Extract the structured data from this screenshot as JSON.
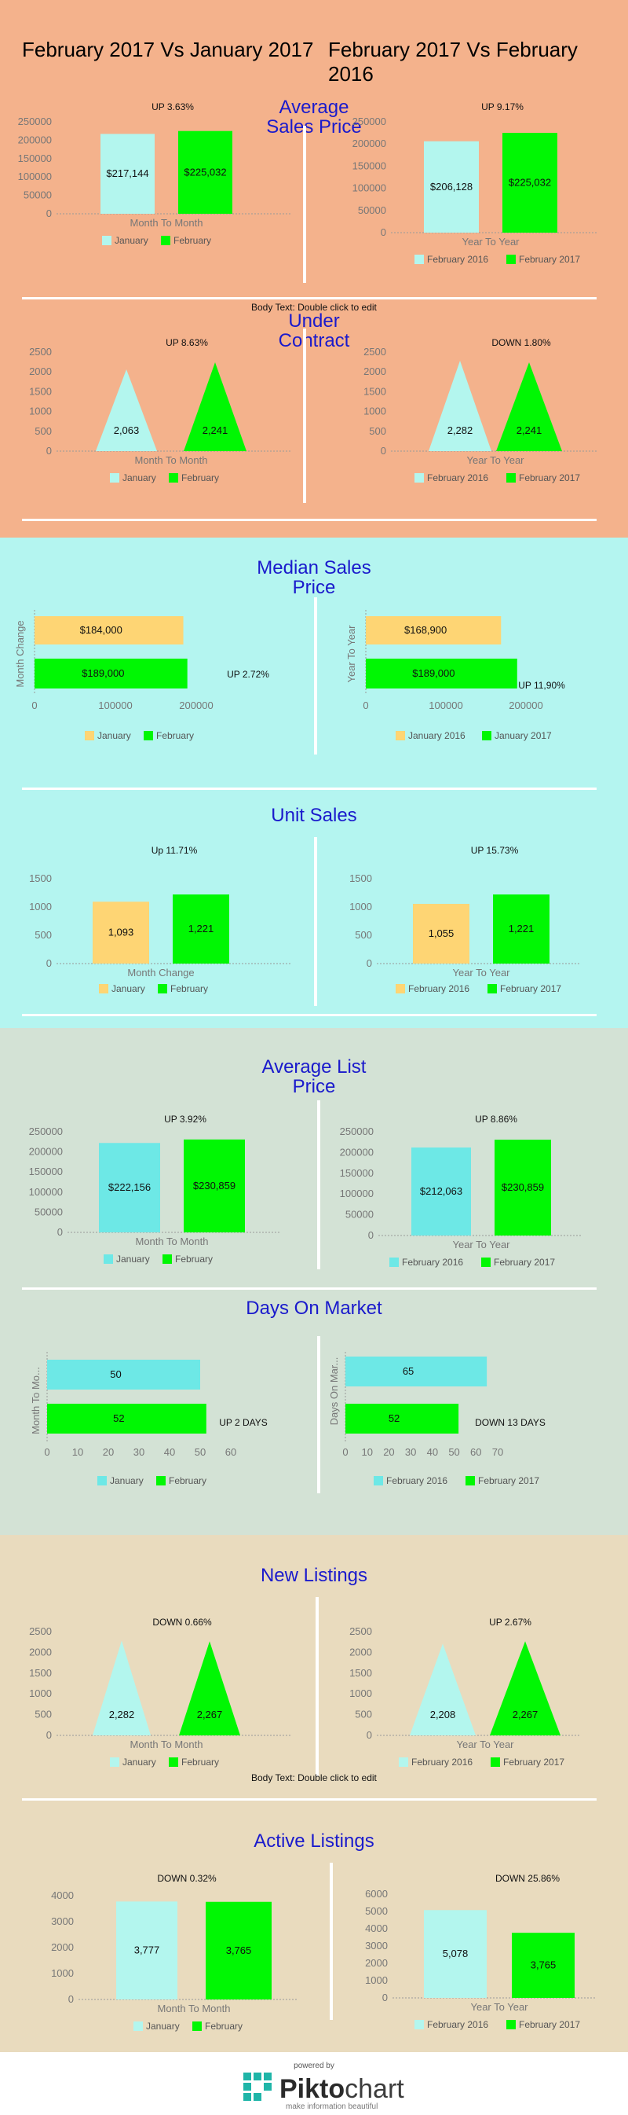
{
  "header": {
    "left_title": "February 2017 Vs January 2017",
    "right_title": "February 2017 Vs February 2016"
  },
  "colors": {
    "band1": "#f4b28c",
    "band2": "#b4f5f0",
    "band3": "#d3e2d5",
    "band4": "#e9dbbe",
    "light_blue": "#b3f6ee",
    "cyan": "#6de8e6",
    "yellow": "#fed574",
    "green": "#00f703",
    "title_blue": "#1a1acc"
  },
  "note_text": "Body Text: Double click to edit",
  "sections": {
    "avg_sales": {
      "title_line1": "Average",
      "title_line2": "Sales Price"
    },
    "under_contract": {
      "title_line1": "Under",
      "title_line2": "Contract"
    },
    "median": {
      "title_line1": "Median Sales",
      "title_line2": "Price"
    },
    "unit_sales": {
      "title_line1": "Unit Sales"
    },
    "avg_list": {
      "title_line1": "Average List",
      "title_line2": "Price"
    },
    "dom": {
      "title_line1": "Days On Market"
    },
    "new_listings": {
      "title_line1": "New Listings"
    },
    "active": {
      "title_line1": "Active Listings"
    }
  },
  "footer": {
    "powered_by": "powered by",
    "brand_a": "Pikto",
    "brand_b": "chart",
    "tagline": "make information beautiful"
  },
  "chart_data": [
    {
      "id": "c1",
      "type": "bar",
      "ylim": [
        0,
        250000
      ],
      "yticks": [
        0,
        50000,
        100000,
        150000,
        200000,
        250000
      ],
      "xlabel": "Month To Month",
      "series": [
        {
          "name": "January",
          "value": 217144,
          "label": "$217,144",
          "color": "#b3f6ee"
        },
        {
          "name": "February",
          "value": 225032,
          "label": "$225,032",
          "color": "#00f703"
        }
      ],
      "annotation": "UP 3.63%"
    },
    {
      "id": "c2",
      "type": "bar",
      "ylim": [
        0,
        250000
      ],
      "yticks": [
        0,
        50000,
        100000,
        150000,
        200000,
        250000
      ],
      "xlabel": "Year To Year",
      "series": [
        {
          "name": "February 2016",
          "value": 206128,
          "label": "$206,128",
          "color": "#b3f6ee"
        },
        {
          "name": "February 2017",
          "value": 225032,
          "label": "$225,032",
          "color": "#00f703"
        }
      ],
      "annotation": "UP 9.17%"
    },
    {
      "id": "c3",
      "type": "triangle",
      "ylim": [
        0,
        2500
      ],
      "yticks": [
        0,
        500,
        1000,
        1500,
        2000,
        2500
      ],
      "xlabel": "Month To Month",
      "series": [
        {
          "name": "January",
          "value": 2063,
          "label": "2,063",
          "color": "#b3f6ee"
        },
        {
          "name": "February",
          "value": 2241,
          "label": "2,241",
          "color": "#00f703"
        }
      ],
      "annotation": "UP 8.63%"
    },
    {
      "id": "c4",
      "type": "triangle",
      "ylim": [
        0,
        2500
      ],
      "yticks": [
        0,
        500,
        1000,
        1500,
        2000,
        2500
      ],
      "xlabel": "Year To Year",
      "series": [
        {
          "name": "February 2016",
          "value": 2282,
          "label": "2,282",
          "color": "#b3f6ee"
        },
        {
          "name": "February 2017",
          "value": 2241,
          "label": "2,241",
          "color": "#00f703"
        }
      ],
      "annotation": "DOWN 1.80%"
    },
    {
      "id": "c5",
      "type": "hbar",
      "xlim": [
        0,
        200000
      ],
      "xticks": [
        0,
        100000,
        200000
      ],
      "ylabel": "Month Change",
      "series": [
        {
          "name": "January",
          "value": 184000,
          "label": "$184,000",
          "color": "#fed574"
        },
        {
          "name": "February",
          "value": 189000,
          "label": "$189,000",
          "color": "#00f703"
        }
      ],
      "annotation": "UP  2.72%"
    },
    {
      "id": "c6",
      "type": "hbar",
      "xlim": [
        0,
        200000
      ],
      "xticks": [
        0,
        100000,
        200000
      ],
      "ylabel": "Year To Year",
      "series": [
        {
          "name": "January 2016",
          "value": 168900,
          "label": "$168,900",
          "color": "#fed574"
        },
        {
          "name": "January 2017",
          "value": 189000,
          "label": "$189,000",
          "color": "#00f703"
        }
      ],
      "annotation": "UP 11,90%"
    },
    {
      "id": "c7",
      "type": "bar",
      "ylim": [
        0,
        1500
      ],
      "yticks": [
        0,
        500,
        1000,
        1500
      ],
      "xlabel": "Month Change",
      "series": [
        {
          "name": "January",
          "value": 1093,
          "label": "1,093",
          "color": "#fed574"
        },
        {
          "name": "February",
          "value": 1221,
          "label": "1,221",
          "color": "#00f703"
        }
      ],
      "annotation": "Up 11.71%"
    },
    {
      "id": "c8",
      "type": "bar",
      "ylim": [
        0,
        1500
      ],
      "yticks": [
        0,
        500,
        1000,
        1500
      ],
      "xlabel": "Year To Year",
      "series": [
        {
          "name": "February 2016",
          "value": 1055,
          "label": "1,055",
          "color": "#fed574"
        },
        {
          "name": "February 2017",
          "value": 1221,
          "label": "1,221",
          "color": "#00f703"
        }
      ],
      "annotation": "UP 15.73%"
    },
    {
      "id": "c9",
      "type": "bar",
      "ylim": [
        0,
        250000
      ],
      "yticks": [
        0,
        50000,
        100000,
        150000,
        200000,
        250000
      ],
      "xlabel": "Month To Month",
      "series": [
        {
          "name": "January",
          "value": 222156,
          "label": "$222,156",
          "color": "#6de8e6"
        },
        {
          "name": "February",
          "value": 230859,
          "label": "$230,859",
          "color": "#00f703"
        }
      ],
      "annotation": "UP 3.92%"
    },
    {
      "id": "c10",
      "type": "bar",
      "ylim": [
        0,
        250000
      ],
      "yticks": [
        0,
        50000,
        100000,
        150000,
        200000,
        250000
      ],
      "xlabel": "Year To Year",
      "series": [
        {
          "name": "February 2016",
          "value": 212063,
          "label": "$212,063",
          "color": "#6de8e6"
        },
        {
          "name": "February 2017",
          "value": 230859,
          "label": "$230,859",
          "color": "#00f703"
        }
      ],
      "annotation": "UP 8.86%"
    },
    {
      "id": "c11",
      "type": "hbar",
      "xlim": [
        0,
        60
      ],
      "xticks": [
        0,
        10,
        20,
        30,
        40,
        50,
        60
      ],
      "ylabel": "Month To Mo...",
      "series": [
        {
          "name": "January",
          "value": 50,
          "label": "50",
          "color": "#6de8e6"
        },
        {
          "name": "February",
          "value": 52,
          "label": "52",
          "color": "#00f703"
        }
      ],
      "annotation": "UP  2 DAYS"
    },
    {
      "id": "c12",
      "type": "hbar",
      "xlim": [
        0,
        70
      ],
      "xticks": [
        0,
        10,
        20,
        30,
        40,
        50,
        60,
        70
      ],
      "ylabel": "Days On Mar...",
      "series": [
        {
          "name": "February 2016",
          "value": 65,
          "label": "65",
          "color": "#6de8e6"
        },
        {
          "name": "February 2017",
          "value": 52,
          "label": "52",
          "color": "#00f703"
        }
      ],
      "annotation": "DOWN 13 DAYS"
    },
    {
      "id": "c13",
      "type": "triangle",
      "ylim": [
        0,
        2500
      ],
      "yticks": [
        0,
        500,
        1000,
        1500,
        2000,
        2500
      ],
      "xlabel": "Month To Month",
      "series": [
        {
          "name": "January",
          "value": 2282,
          "label": "2,282",
          "color": "#b3f6ee"
        },
        {
          "name": "February",
          "value": 2267,
          "label": "2,267",
          "color": "#00f703"
        }
      ],
      "annotation": "DOWN 0.66%"
    },
    {
      "id": "c14",
      "type": "triangle",
      "ylim": [
        0,
        2500
      ],
      "yticks": [
        0,
        500,
        1000,
        1500,
        2000,
        2500
      ],
      "xlabel": "Year To Year",
      "series": [
        {
          "name": "February 2016",
          "value": 2208,
          "label": "2,208",
          "color": "#b3f6ee"
        },
        {
          "name": "February 2017",
          "value": 2267,
          "label": "2,267",
          "color": "#00f703"
        }
      ],
      "annotation": "UP 2.67%"
    },
    {
      "id": "c15",
      "type": "bar",
      "ylim": [
        0,
        4000
      ],
      "yticks": [
        0,
        1000,
        2000,
        3000,
        4000
      ],
      "xlabel": "Month To Month",
      "series": [
        {
          "name": "January",
          "value": 3777,
          "label": "3,777",
          "color": "#b3f6ee"
        },
        {
          "name": "February",
          "value": 3765,
          "label": "3,765",
          "color": "#00f703"
        }
      ],
      "annotation": "DOWN 0.32%"
    },
    {
      "id": "c16",
      "type": "bar",
      "ylim": [
        0,
        6000
      ],
      "yticks": [
        0,
        1000,
        2000,
        3000,
        4000,
        5000,
        6000
      ],
      "xlabel": "Year To Year",
      "series": [
        {
          "name": "February 2016",
          "value": 5078,
          "label": "5,078",
          "color": "#b3f6ee"
        },
        {
          "name": "February 2017",
          "value": 3765,
          "label": "3,765",
          "color": "#00f703"
        }
      ],
      "annotation": "DOWN 25.86%"
    }
  ]
}
